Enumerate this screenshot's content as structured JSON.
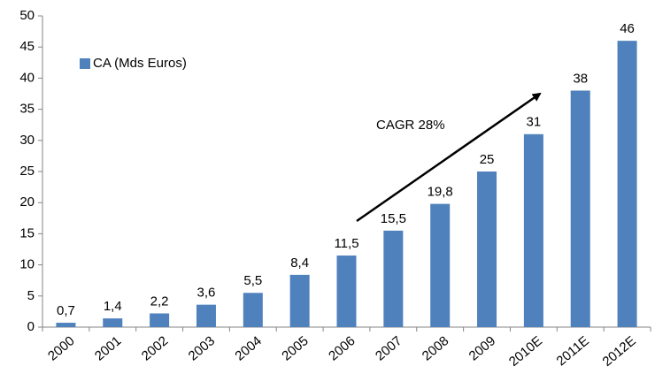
{
  "chart_data": {
    "type": "bar",
    "categories": [
      "2000",
      "2001",
      "2002",
      "2003",
      "2004",
      "2005",
      "2006",
      "2007",
      "2008",
      "2009",
      "2010E",
      "2011E",
      "2012E"
    ],
    "series": [
      {
        "name": "CA (Mds Euros)",
        "color": "#4f81bd",
        "values": [
          0.7,
          1.4,
          2.2,
          3.6,
          5.5,
          8.4,
          11.5,
          15.5,
          19.8,
          25,
          31,
          38,
          46
        ],
        "value_labels": [
          "0,7",
          "1,4",
          "2,2",
          "3,6",
          "5,5",
          "8,4",
          "11,5",
          "15,5",
          "19,8",
          "25",
          "31",
          "38",
          "46"
        ]
      }
    ],
    "ylim": [
      0,
      50
    ],
    "yticks": [
      0,
      5,
      10,
      15,
      20,
      25,
      30,
      35,
      40,
      45,
      50
    ],
    "grid": false,
    "legend": "upper left",
    "annotation": "CAGR 28%"
  }
}
